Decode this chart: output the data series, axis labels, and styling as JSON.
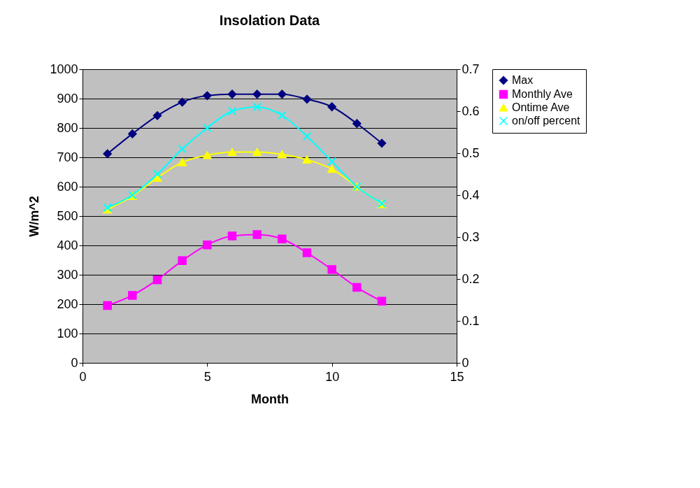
{
  "chart_data": {
    "type": "line",
    "title": "Insolation Data",
    "xlabel": "Month",
    "ylabel": "W/m^2",
    "x": [
      1,
      2,
      3,
      4,
      5,
      6,
      7,
      8,
      9,
      10,
      11,
      12
    ],
    "xlim": [
      0,
      15
    ],
    "xticks": [
      0,
      5,
      10,
      15
    ],
    "ylim": [
      0,
      1000
    ],
    "yticks": [
      0,
      100,
      200,
      300,
      400,
      500,
      600,
      700,
      800,
      900,
      1000
    ],
    "y2lim": [
      0,
      0.7
    ],
    "y2ticks": [
      0,
      0.1,
      0.2,
      0.3,
      0.4,
      0.5,
      0.6,
      0.7
    ],
    "grid": "y",
    "legend": "right",
    "series": [
      {
        "name": "Max",
        "color": "#000080",
        "marker": "diamond",
        "values": [
          712,
          780,
          842,
          888,
          910,
          915,
          915,
          915,
          898,
          872,
          815,
          748
        ]
      },
      {
        "name": "Monthly Ave",
        "color": "#ff00ff",
        "marker": "square",
        "values": [
          195,
          230,
          283,
          348,
          402,
          432,
          437,
          422,
          375,
          318,
          257,
          210
        ]
      },
      {
        "name": "Ontime Ave",
        "color": "#ffff00",
        "marker": "triangle",
        "values": [
          522,
          568,
          630,
          683,
          707,
          718,
          718,
          710,
          692,
          660,
          600,
          540
        ]
      },
      {
        "name": "on/off percent",
        "color": "#00ffff",
        "marker": "cross",
        "axis": "y2",
        "values": [
          0.37,
          0.4,
          0.45,
          0.51,
          0.56,
          0.6,
          0.61,
          0.59,
          0.54,
          0.48,
          0.42,
          0.38
        ]
      }
    ]
  }
}
